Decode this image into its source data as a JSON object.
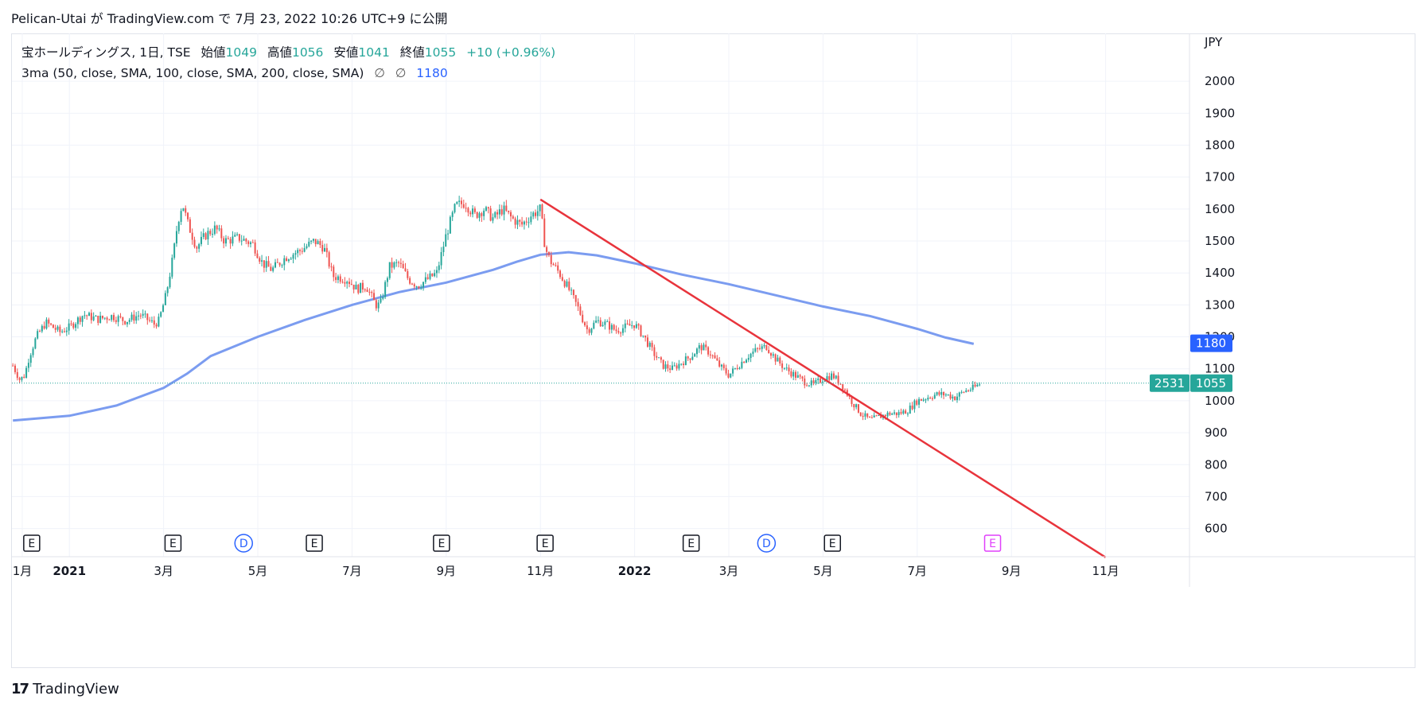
{
  "header": {
    "text": "Pelican-Utai が TradingView.com で 7月 23, 2022 10:26 UTC+9 に公開"
  },
  "legend": {
    "symbol": "宝ホールディングス, 1日, TSE",
    "open_label": "始値",
    "open": "1049",
    "high_label": "高値",
    "high": "1056",
    "low_label": "安値",
    "low": "1041",
    "close_label": "終値",
    "close": "1055",
    "change": "+10 (+0.96%)",
    "ma_label": "3ma (50, close, SMA, 100, close, SMA, 200, close, SMA)",
    "ma_glyph1": "∅",
    "ma_glyph2": "∅",
    "ma_value": "1180"
  },
  "footer": {
    "brand": "TradingView",
    "logo": "17"
  },
  "chart_data": {
    "type": "candlestick",
    "currency": "JPY",
    "y_ticks": [
      600,
      700,
      800,
      900,
      1000,
      1100,
      1200,
      1300,
      1400,
      1500,
      1600,
      1700,
      1800,
      1900,
      2000
    ],
    "ylim": [
      520,
      2150
    ],
    "x_ticks": [
      {
        "label": "1月",
        "idx": 0,
        "bold": false
      },
      {
        "label": "2021",
        "idx": 1,
        "bold": true
      },
      {
        "label": "3月",
        "idx": 2,
        "bold": false
      },
      {
        "label": "5月",
        "idx": 3,
        "bold": false
      },
      {
        "label": "7月",
        "idx": 4,
        "bold": false
      },
      {
        "label": "9月",
        "idx": 5,
        "bold": false
      },
      {
        "label": "11月",
        "idx": 6,
        "bold": false
      },
      {
        "label": "2022",
        "idx": 7,
        "bold": true
      },
      {
        "label": "3月",
        "idx": 8,
        "bold": false
      },
      {
        "label": "5月",
        "idx": 9,
        "bold": false
      },
      {
        "label": "7月",
        "idx": 10,
        "bold": false
      },
      {
        "label": "9月",
        "idx": 11,
        "bold": false
      },
      {
        "label": "11月",
        "idx": 12,
        "bold": false
      }
    ],
    "x_months": [
      0,
      1,
      3,
      5,
      7,
      9,
      11,
      13,
      15,
      17,
      19,
      21,
      23
    ],
    "price_path": [
      [
        -0.2,
        1110
      ],
      [
        -0.05,
        1065
      ],
      [
        0.05,
        1080
      ],
      [
        0.15,
        1140
      ],
      [
        0.3,
        1200
      ],
      [
        0.5,
        1245
      ],
      [
        0.8,
        1215
      ],
      [
        1.0,
        1230
      ],
      [
        1.3,
        1270
      ],
      [
        1.6,
        1255
      ],
      [
        1.9,
        1265
      ],
      [
        2.2,
        1250
      ],
      [
        2.5,
        1270
      ],
      [
        2.8,
        1240
      ],
      [
        2.9,
        1250
      ],
      [
        3.05,
        1330
      ],
      [
        3.2,
        1450
      ],
      [
        3.3,
        1560
      ],
      [
        3.4,
        1620
      ],
      [
        3.5,
        1560
      ],
      [
        3.7,
        1480
      ],
      [
        3.9,
        1520
      ],
      [
        4.1,
        1540
      ],
      [
        4.3,
        1500
      ],
      [
        4.6,
        1510
      ],
      [
        4.9,
        1490
      ],
      [
        5.1,
        1430
      ],
      [
        5.3,
        1410
      ],
      [
        5.6,
        1450
      ],
      [
        5.9,
        1470
      ],
      [
        6.2,
        1500
      ],
      [
        6.4,
        1480
      ],
      [
        6.6,
        1390
      ],
      [
        6.9,
        1380
      ],
      [
        7.1,
        1350
      ],
      [
        7.3,
        1360
      ],
      [
        7.5,
        1300
      ],
      [
        7.6,
        1300
      ],
      [
        7.8,
        1420
      ],
      [
        8.0,
        1430
      ],
      [
        8.2,
        1380
      ],
      [
        8.4,
        1360
      ],
      [
        8.6,
        1380
      ],
      [
        8.8,
        1400
      ],
      [
        9.0,
        1520
      ],
      [
        9.2,
        1610
      ],
      [
        9.4,
        1620
      ],
      [
        9.6,
        1580
      ],
      [
        9.8,
        1600
      ],
      [
        10.0,
        1570
      ],
      [
        10.2,
        1600
      ],
      [
        10.4,
        1570
      ],
      [
        10.6,
        1550
      ],
      [
        10.8,
        1580
      ],
      [
        11.0,
        1600
      ],
      [
        11.1,
        1480
      ],
      [
        11.2,
        1440
      ],
      [
        11.4,
        1400
      ],
      [
        11.6,
        1350
      ],
      [
        11.8,
        1290
      ],
      [
        12.0,
        1220
      ],
      [
        12.2,
        1250
      ],
      [
        12.4,
        1240
      ],
      [
        12.6,
        1220
      ],
      [
        12.8,
        1230
      ],
      [
        13.0,
        1240
      ],
      [
        13.2,
        1200
      ],
      [
        13.4,
        1150
      ],
      [
        13.6,
        1110
      ],
      [
        13.8,
        1100
      ],
      [
        14.0,
        1120
      ],
      [
        14.2,
        1140
      ],
      [
        14.4,
        1170
      ],
      [
        14.6,
        1150
      ],
      [
        14.8,
        1110
      ],
      [
        15.0,
        1080
      ],
      [
        15.2,
        1110
      ],
      [
        15.4,
        1140
      ],
      [
        15.6,
        1160
      ],
      [
        15.8,
        1170
      ],
      [
        16.0,
        1130
      ],
      [
        16.2,
        1100
      ],
      [
        16.4,
        1080
      ],
      [
        16.6,
        1060
      ],
      [
        16.8,
        1050
      ],
      [
        17.0,
        1070
      ],
      [
        17.2,
        1080
      ],
      [
        17.4,
        1050
      ],
      [
        17.6,
        1000
      ],
      [
        17.8,
        960
      ],
      [
        18.0,
        940
      ],
      [
        18.2,
        950
      ],
      [
        18.4,
        960
      ],
      [
        18.6,
        960
      ],
      [
        18.8,
        970
      ],
      [
        19.0,
        1000
      ],
      [
        19.2,
        1010
      ],
      [
        19.4,
        1020
      ],
      [
        19.6,
        1020
      ],
      [
        19.8,
        1010
      ],
      [
        20.0,
        1030
      ],
      [
        20.2,
        1040
      ],
      [
        20.35,
        1055
      ]
    ],
    "ma200_path": [
      [
        -0.2,
        938
      ],
      [
        1.0,
        953
      ],
      [
        2.0,
        985
      ],
      [
        3.0,
        1040
      ],
      [
        3.5,
        1085
      ],
      [
        4.0,
        1140
      ],
      [
        5.0,
        1200
      ],
      [
        6.0,
        1253
      ],
      [
        7.0,
        1300
      ],
      [
        8.0,
        1340
      ],
      [
        9.0,
        1370
      ],
      [
        10.0,
        1410
      ],
      [
        10.5,
        1435
      ],
      [
        11.0,
        1457
      ],
      [
        11.6,
        1465
      ],
      [
        12.2,
        1455
      ],
      [
        13.0,
        1430
      ],
      [
        14.0,
        1395
      ],
      [
        15.0,
        1365
      ],
      [
        16.0,
        1330
      ],
      [
        17.0,
        1295
      ],
      [
        18.0,
        1265
      ],
      [
        19.0,
        1225
      ],
      [
        19.6,
        1198
      ],
      [
        20.2,
        1178
      ]
    ],
    "trendline": {
      "start": [
        11.0,
        1630
      ],
      "end": [
        23.0,
        510
      ]
    },
    "current_price": 1055,
    "countdown": "2531",
    "ma_current": 1180,
    "events": [
      {
        "month": 0.2,
        "type": "E",
        "future": false
      },
      {
        "month": 3.2,
        "type": "E",
        "future": false
      },
      {
        "month": 4.7,
        "type": "D",
        "future": false
      },
      {
        "month": 6.2,
        "type": "E",
        "future": false
      },
      {
        "month": 8.9,
        "type": "E",
        "future": false
      },
      {
        "month": 11.1,
        "type": "E",
        "future": false
      },
      {
        "month": 14.2,
        "type": "E",
        "future": false
      },
      {
        "month": 15.8,
        "type": "D",
        "future": false
      },
      {
        "month": 17.2,
        "type": "E",
        "future": false
      },
      {
        "month": 20.6,
        "type": "E",
        "future": true
      }
    ],
    "colors": {
      "up": "#26a69a",
      "down": "#ef5350",
      "ma": "#2962ff",
      "ma_line": "#7b9cf0",
      "trend": "#e8343c",
      "future_event": "#e040fb",
      "grid": "#f0f3fa"
    }
  }
}
